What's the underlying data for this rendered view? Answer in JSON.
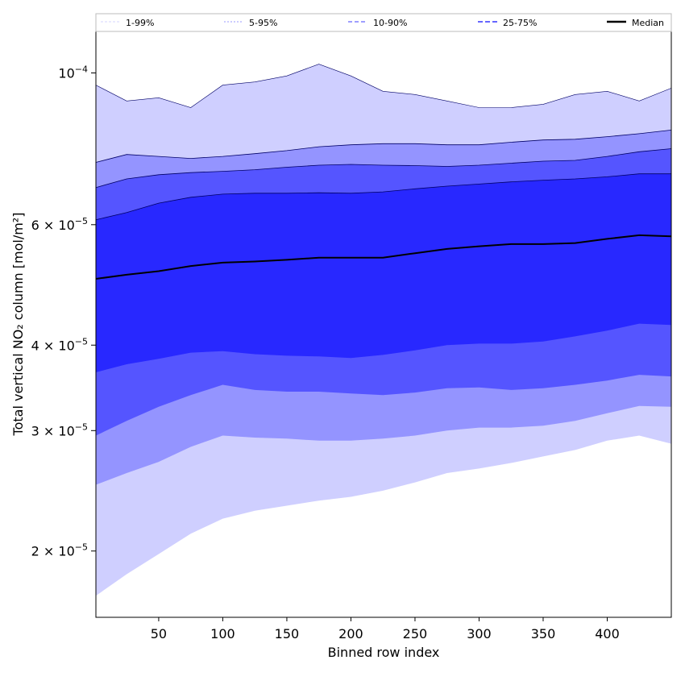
{
  "chart_data": {
    "type": "area",
    "title": "",
    "xlabel": "Binned row index",
    "ylabel": "Total vertical NO₂ column [mol/m²]",
    "x_range": [
      1,
      450
    ],
    "y_range": [
      1.6e-05,
      0.000115
    ],
    "y_scale": "log",
    "grid": false,
    "legend_position": "top",
    "x_ticks": [
      {
        "value": 50,
        "label": "50"
      },
      {
        "value": 100,
        "label": "100"
      },
      {
        "value": 150,
        "label": "150"
      },
      {
        "value": 200,
        "label": "200"
      },
      {
        "value": 250,
        "label": "250"
      },
      {
        "value": 300,
        "label": "300"
      },
      {
        "value": 350,
        "label": "350"
      },
      {
        "value": 400,
        "label": "400"
      }
    ],
    "y_ticks": [
      {
        "value": 2e-05,
        "mantissa": "2 × 10",
        "exp": "−5"
      },
      {
        "value": 3e-05,
        "mantissa": "3 × 10",
        "exp": "−5"
      },
      {
        "value": 4e-05,
        "mantissa": "4 × 10",
        "exp": "−5"
      },
      {
        "value": 6e-05,
        "mantissa": "6 × 10",
        "exp": "−5"
      },
      {
        "value": 0.0001,
        "mantissa": "10",
        "exp": "−4"
      }
    ],
    "x": [
      1,
      25,
      50,
      75,
      100,
      125,
      150,
      175,
      200,
      225,
      250,
      275,
      300,
      325,
      350,
      375,
      400,
      425,
      450
    ],
    "series": [
      {
        "name": "1-99%",
        "color": "#cfcfff",
        "lower": [
          1.72e-05,
          1.85e-05,
          1.98e-05,
          2.12e-05,
          2.23e-05,
          2.29e-05,
          2.33e-05,
          2.37e-05,
          2.4e-05,
          2.45e-05,
          2.52e-05,
          2.6e-05,
          2.64e-05,
          2.69e-05,
          2.75e-05,
          2.81e-05,
          2.9e-05,
          2.95e-05,
          2.87e-05
        ],
        "upper": [
          9.6e-05,
          9.1e-05,
          9.2e-05,
          8.9e-05,
          9.6e-05,
          9.7e-05,
          9.9e-05,
          0.000103,
          9.9e-05,
          9.4e-05,
          9.3e-05,
          9.1e-05,
          8.9e-05,
          8.9e-05,
          9e-05,
          9.3e-05,
          9.4e-05,
          9.1e-05,
          9.5e-05
        ]
      },
      {
        "name": "5-95%",
        "color": "#9494ff",
        "lower": [
          2.5e-05,
          2.6e-05,
          2.7e-05,
          2.84e-05,
          2.95e-05,
          2.93e-05,
          2.92e-05,
          2.9e-05,
          2.9e-05,
          2.92e-05,
          2.95e-05,
          3e-05,
          3.03e-05,
          3.03e-05,
          3.05e-05,
          3.1e-05,
          3.18e-05,
          3.26e-05,
          3.25e-05
        ],
        "upper": [
          7.4e-05,
          7.6e-05,
          7.55e-05,
          7.5e-05,
          7.55e-05,
          7.62e-05,
          7.7e-05,
          7.8e-05,
          7.85e-05,
          7.88e-05,
          7.88e-05,
          7.85e-05,
          7.85e-05,
          7.92e-05,
          7.98e-05,
          8e-05,
          8.07e-05,
          8.15e-05,
          8.25e-05
        ]
      },
      {
        "name": "10-90%",
        "color": "#5555ff",
        "lower": [
          2.95e-05,
          3.1e-05,
          3.25e-05,
          3.38e-05,
          3.5e-05,
          3.44e-05,
          3.42e-05,
          3.42e-05,
          3.4e-05,
          3.38e-05,
          3.41e-05,
          3.46e-05,
          3.47e-05,
          3.44e-05,
          3.46e-05,
          3.5e-05,
          3.55e-05,
          3.62e-05,
          3.6e-05
        ],
        "upper": [
          6.8e-05,
          7e-05,
          7.1e-05,
          7.15e-05,
          7.18e-05,
          7.22e-05,
          7.28e-05,
          7.33e-05,
          7.35e-05,
          7.33e-05,
          7.32e-05,
          7.3e-05,
          7.33e-05,
          7.38e-05,
          7.43e-05,
          7.45e-05,
          7.55e-05,
          7.67e-05,
          7.75e-05
        ]
      },
      {
        "name": "25-75%",
        "color": "#2828ff",
        "lower": [
          3.65e-05,
          3.75e-05,
          3.82e-05,
          3.9e-05,
          3.92e-05,
          3.88e-05,
          3.86e-05,
          3.85e-05,
          3.83e-05,
          3.87e-05,
          3.93e-05,
          4e-05,
          4.02e-05,
          4.02e-05,
          4.05e-05,
          4.12e-05,
          4.2e-05,
          4.3e-05,
          4.28e-05
        ],
        "upper": [
          6.1e-05,
          6.25e-05,
          6.45e-05,
          6.58e-05,
          6.65e-05,
          6.67e-05,
          6.67e-05,
          6.68e-05,
          6.67e-05,
          6.7e-05,
          6.77e-05,
          6.83e-05,
          6.88e-05,
          6.93e-05,
          6.97e-05,
          7e-05,
          7.05e-05,
          7.12e-05,
          7.12e-05
        ]
      },
      {
        "name": "Median",
        "color": "#000000",
        "values": [
          5e-05,
          5.07e-05,
          5.13e-05,
          5.22e-05,
          5.28e-05,
          5.3e-05,
          5.33e-05,
          5.37e-05,
          5.37e-05,
          5.37e-05,
          5.45e-05,
          5.53e-05,
          5.58e-05,
          5.62e-05,
          5.62e-05,
          5.64e-05,
          5.72e-05,
          5.79e-05,
          5.77e-05
        ]
      }
    ]
  }
}
